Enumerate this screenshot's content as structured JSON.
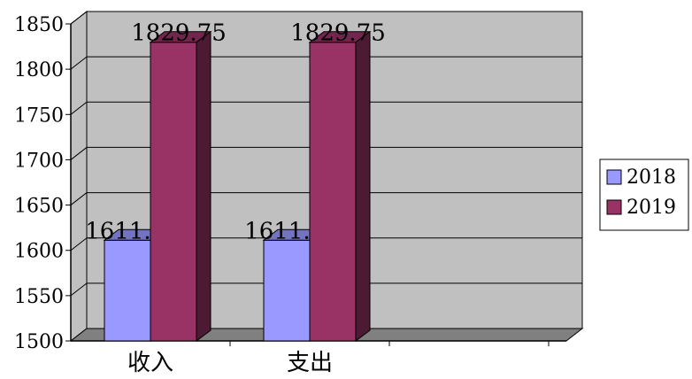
{
  "chart_data": {
    "type": "bar",
    "categories": [
      "收入",
      "支出"
    ],
    "series": [
      {
        "name": "2018",
        "values": [
          1611.19,
          1611.19
        ],
        "color": "#9999FF",
        "label": [
          "1611.19",
          "1611.19"
        ]
      },
      {
        "name": "2019",
        "values": [
          1829.75,
          1829.75
        ],
        "color": "#993366",
        "label": [
          "1829.75",
          "1829.75"
        ]
      }
    ],
    "yticks": [
      "1500",
      "1550",
      "1600",
      "1650",
      "1700",
      "1750",
      "1800",
      "1850"
    ],
    "ylim": [
      1500,
      1850
    ],
    "grid": true,
    "legend_position": "right",
    "title": "",
    "xlabel": "",
    "ylabel": "",
    "colors": {
      "wall": "#C0C0C0",
      "floor": "#808080"
    }
  }
}
